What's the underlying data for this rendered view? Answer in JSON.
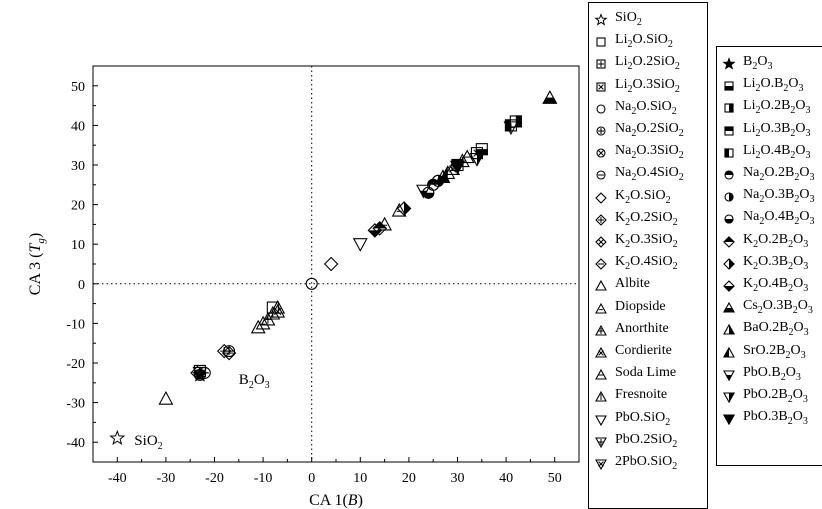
{
  "chart_data": {
    "type": "scatter",
    "title": "",
    "xlabel": "CA 1(B)",
    "ylabel": "CA 3 (Tg)",
    "xlim": [
      -45,
      55
    ],
    "ylim": [
      -45,
      55
    ],
    "x_ticks": [
      "-40",
      "-30",
      "-20",
      "-10",
      "0",
      "10",
      "20",
      "30",
      "40",
      "50"
    ],
    "y_ticks": [
      "-40",
      "-30",
      "-20",
      "-10",
      "0",
      "10",
      "20",
      "30",
      "40",
      "50"
    ],
    "reference_lines": {
      "x": 0,
      "y": 0,
      "style": "dotted"
    },
    "annotations": [
      {
        "text": "SiO2",
        "x": -36.5,
        "y": -39.5
      },
      {
        "text": "B2O3",
        "x": -15,
        "y": -24
      }
    ],
    "legend_placement": "right",
    "series": [
      {
        "name": "SiO2",
        "marker": "star-open",
        "points": [
          [
            -40,
            -39
          ]
        ]
      },
      {
        "name": "Li2O.SiO2",
        "marker": "square-open",
        "points": [
          [
            -8,
            -6
          ]
        ]
      },
      {
        "name": "Li2O.2SiO2",
        "marker": "square-plus",
        "points": [
          [
            -23,
            -22
          ]
        ]
      },
      {
        "name": "Li2O.3SiO2",
        "marker": "square-x",
        "points": [
          [
            34,
            33
          ]
        ]
      },
      {
        "name": "Na2O.SiO2",
        "marker": "circle-open",
        "points": [
          [
            0,
            0
          ]
        ]
      },
      {
        "name": "Na2O.2SiO2",
        "marker": "circle-plus",
        "points": [
          [
            -17,
            -17
          ]
        ]
      },
      {
        "name": "Na2O.3SiO2",
        "marker": "circle-x",
        "points": [
          [
            -23,
            -23
          ]
        ]
      },
      {
        "name": "Na2O.4SiO2",
        "marker": "circle-minus",
        "points": [
          [
            -22,
            -22.5
          ]
        ]
      },
      {
        "name": "K2O.SiO2",
        "marker": "diamond-open",
        "points": [
          [
            4,
            5
          ]
        ]
      },
      {
        "name": "K2O.2SiO2",
        "marker": "diamond-plus",
        "points": [
          [
            -18,
            -17
          ]
        ]
      },
      {
        "name": "K2O.3SiO2",
        "marker": "diamond-x",
        "points": [
          [
            -23.5,
            -22.5
          ]
        ]
      },
      {
        "name": "K2O.4SiO2",
        "marker": "diamond-minus",
        "points": [
          [
            -17,
            -17.5
          ]
        ]
      },
      {
        "name": "Albite",
        "marker": "triangle-open",
        "points": [
          [
            -30,
            -29
          ],
          [
            -11,
            -11
          ],
          [
            -7,
            -6
          ]
        ]
      },
      {
        "name": "Diopside",
        "marker": "triangle-open-line",
        "points": [
          [
            -10,
            -10
          ],
          [
            15,
            15
          ],
          [
            18,
            18.5
          ]
        ]
      },
      {
        "name": "Anorthite",
        "marker": "triangle-plus",
        "points": [
          [
            -9,
            -9
          ],
          [
            31,
            31
          ]
        ]
      },
      {
        "name": "Cordierite",
        "marker": "triangle-x",
        "points": [
          [
            -7,
            -7
          ],
          [
            29,
            29
          ]
        ]
      },
      {
        "name": "Soda Lime",
        "marker": "triangle-minus",
        "points": [
          [
            32,
            32
          ]
        ]
      },
      {
        "name": "Fresnoite",
        "marker": "triangle-vline",
        "points": [
          [
            -8,
            -7.5
          ]
        ]
      },
      {
        "name": "PbO.SiO2",
        "marker": "tri-down-open",
        "points": [
          [
            10,
            10
          ]
        ]
      },
      {
        "name": "PbO.2SiO2",
        "marker": "tri-down-plus",
        "points": [
          [
            41,
            39.5
          ]
        ]
      },
      {
        "name": "2PbO.SiO2",
        "marker": "tri-down-x",
        "points": [
          [
            -23,
            -22.5
          ]
        ]
      },
      {
        "name": "B2O3",
        "marker": "star-filled",
        "points": [
          [
            -23,
            -23
          ]
        ]
      },
      {
        "name": "Li2O.B2O3",
        "marker": "square-half-bottom",
        "points": [
          [
            35,
            34
          ]
        ]
      },
      {
        "name": "Li2O.2B2O3",
        "marker": "square-half-right",
        "points": [
          [
            42,
            41
          ]
        ]
      },
      {
        "name": "Li2O.3B2O3",
        "marker": "square-half-top",
        "points": [
          [
            30,
            30
          ]
        ]
      },
      {
        "name": "Li2O.4B2O3",
        "marker": "square-half-left",
        "points": [
          [
            41,
            40
          ]
        ]
      },
      {
        "name": "Na2O.2B2O3",
        "marker": "circle-half-top",
        "points": [
          [
            25,
            25
          ]
        ]
      },
      {
        "name": "Na2O.3B2O3",
        "marker": "circle-half-right",
        "points": [
          [
            26,
            26
          ]
        ]
      },
      {
        "name": "Na2O.4B2O3",
        "marker": "circle-half-bottom",
        "points": [
          [
            24,
            23
          ]
        ]
      },
      {
        "name": "K2O.2B2O3",
        "marker": "diamond-half-top",
        "points": [
          [
            14,
            14
          ]
        ]
      },
      {
        "name": "K2O.3B2O3",
        "marker": "diamond-half-right",
        "points": [
          [
            19,
            19
          ]
        ]
      },
      {
        "name": "K2O.4B2O3",
        "marker": "diamond-half-bottom",
        "points": [
          [
            13,
            13.5
          ]
        ]
      },
      {
        "name": "Cs2O.3B2O3",
        "marker": "triangle-half-bottom",
        "points": [
          [
            49,
            47
          ]
        ]
      },
      {
        "name": "BaO.2B2O3",
        "marker": "triangle-half-right",
        "points": [
          [
            27,
            27
          ]
        ]
      },
      {
        "name": "SrO.2B2O3",
        "marker": "triangle-half-left",
        "points": [
          [
            28,
            28
          ]
        ]
      },
      {
        "name": "PbO.B2O3",
        "marker": "tri-down-half-bottom",
        "points": [
          [
            23,
            23.5
          ]
        ]
      },
      {
        "name": "PbO.2B2O3",
        "marker": "tri-down-half-right",
        "points": [
          [
            34,
            31.5
          ]
        ]
      },
      {
        "name": "PbO.3B2O3",
        "marker": "tri-down-filled",
        "points": [
          [
            30,
            29.5
          ]
        ]
      }
    ]
  }
}
